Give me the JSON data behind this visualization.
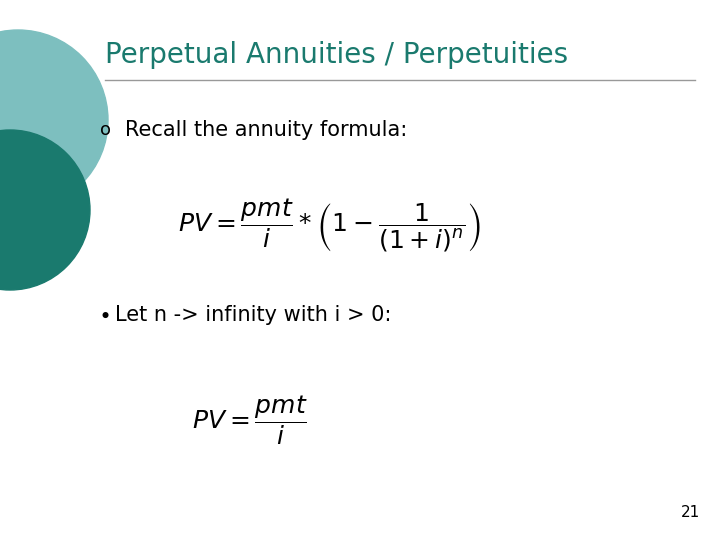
{
  "title": "Perpetual Annuities / Perpetuities",
  "title_color": "#1A7A6E",
  "title_fontsize": 20,
  "bullet1_marker": "o",
  "bullet1_text": "Recall the annuity formula:",
  "bullet2_text": "Let n -> infinity with i > 0:",
  "bg_color": "#FFFFFF",
  "text_color": "#000000",
  "line_color": "#999999",
  "page_number": "21",
  "circle_color_outer": "#7DBFBF",
  "circle_color_inner": "#1A7A6E",
  "title_fontweight": "normal"
}
